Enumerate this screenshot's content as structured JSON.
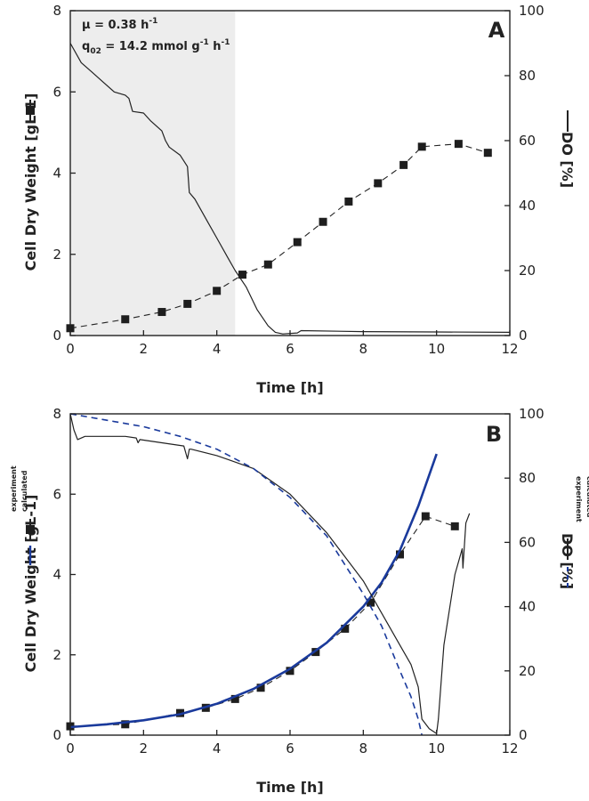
{
  "chart_data": [
    {
      "panel": "A",
      "type": "line",
      "xlabel": "Time [h]",
      "ylabel": "Cell Dry Weight [gL-1]",
      "y2label": "DO [%]",
      "xlim": [
        0,
        12
      ],
      "ylim": [
        0,
        8
      ],
      "y2lim": [
        0,
        100
      ],
      "xticks": [
        "0",
        "2",
        "4",
        "6",
        "8",
        "10",
        "12"
      ],
      "yticks": [
        "0",
        "2",
        "4",
        "6",
        "8"
      ],
      "y2ticks": [
        "0",
        "20",
        "40",
        "60",
        "80",
        "100"
      ],
      "grid": false,
      "shaded_x": [
        0,
        4.5
      ],
      "annotations": [
        "μ = 0.38 h",
        "-1",
        "q",
        "02",
        " = 14.2 mmol g",
        "-1",
        " h",
        "-1"
      ],
      "series": [
        {
          "axis": "left",
          "style": "black-square-dashed",
          "x": [
            0,
            1.5,
            2.5,
            3.2,
            4.0,
            4.7,
            5.4,
            6.2,
            6.9,
            7.6,
            8.4,
            9.1,
            9.6,
            10.6,
            11.4
          ],
          "y": [
            0.18,
            0.4,
            0.58,
            0.78,
            1.1,
            1.5,
            1.75,
            2.3,
            2.8,
            3.3,
            3.75,
            4.2,
            4.65,
            4.72,
            4.5
          ]
        },
        {
          "axis": "right",
          "style": "black-solid",
          "x": [
            0,
            0.3,
            0.6,
            0.9,
            1.2,
            1.5,
            1.6,
            1.7,
            2.0,
            2.2,
            2.5,
            2.6,
            2.7,
            3.0,
            3.2,
            3.25,
            3.4,
            3.7,
            4.0,
            4.3,
            4.5,
            4.8,
            5.1,
            5.4,
            5.6,
            5.8,
            6.2,
            6.3,
            8,
            10,
            12
          ],
          "y": [
            90,
            84,
            81,
            78,
            75,
            74,
            73,
            69,
            68.5,
            66,
            63,
            60,
            58,
            55.5,
            52,
            44,
            42,
            36,
            30,
            24,
            20,
            15,
            8,
            3,
            1,
            0.5,
            0.8,
            1.5,
            1.2,
            1.1,
            1
          ]
        }
      ]
    },
    {
      "panel": "B",
      "type": "line",
      "xlabel": "Time [h]",
      "ylabel": "Cell Dry Weight [gL-1]",
      "y2label": "DO [%]",
      "xlim": [
        0,
        12
      ],
      "ylim": [
        0,
        8
      ],
      "y2lim": [
        0,
        100
      ],
      "xticks": [
        "0",
        "2",
        "4",
        "6",
        "8",
        "10",
        "12"
      ],
      "yticks": [
        "0",
        "2",
        "4",
        "6",
        "8"
      ],
      "y2ticks": [
        "0",
        "20",
        "40",
        "60",
        "80",
        "100"
      ],
      "grid": false,
      "legend": {
        "left": [
          "experiment",
          "calculated"
        ],
        "right": [
          "experiment",
          "calculated"
        ]
      },
      "series": [
        {
          "name": "experiment",
          "axis": "left",
          "style": "black-square-dashed",
          "x": [
            0,
            1.5,
            3.0,
            3.7,
            4.5,
            5.2,
            6.0,
            6.7,
            7.5,
            8.2,
            9.0,
            9.7,
            10.5
          ],
          "y": [
            0.22,
            0.27,
            0.55,
            0.68,
            0.9,
            1.18,
            1.6,
            2.07,
            2.65,
            3.3,
            4.5,
            5.45,
            5.2
          ]
        },
        {
          "name": "calculated",
          "axis": "left",
          "style": "blue-solid",
          "x": [
            0,
            1,
            2,
            3,
            4,
            5,
            6,
            7,
            8,
            8.5,
            9,
            9.5,
            10
          ],
          "y": [
            0.2,
            0.27,
            0.37,
            0.52,
            0.78,
            1.15,
            1.65,
            2.3,
            3.2,
            3.8,
            4.6,
            5.7,
            7.0
          ]
        },
        {
          "name": "experiment",
          "axis": "right",
          "style": "black-solid",
          "x": [
            0,
            0.1,
            0.2,
            0.4,
            1.0,
            1.5,
            1.8,
            1.85,
            1.9,
            2.5,
            3.1,
            3.2,
            3.25,
            3.3,
            4.0,
            5.0,
            6.0,
            7.0,
            8.0,
            8.5,
            9.0,
            9.3,
            9.5,
            9.6,
            9.8,
            10.0,
            10.05,
            10.2,
            10.5,
            10.7,
            10.72,
            10.8,
            10.9
          ],
          "y": [
            100,
            95,
            92,
            93,
            93,
            93,
            92.5,
            91,
            92,
            91,
            90,
            86,
            89,
            89,
            87,
            83,
            75,
            63,
            48,
            38,
            28,
            22,
            15,
            5,
            2,
            0.5,
            5,
            28,
            50,
            58,
            52,
            66,
            69
          ]
        },
        {
          "name": "calculated",
          "axis": "right",
          "style": "blue-dashed",
          "x": [
            0,
            1,
            2,
            3,
            4,
            5,
            6,
            7,
            8,
            8.5,
            9,
            9.3,
            9.5,
            9.6
          ],
          "y": [
            100,
            98,
            96,
            93,
            89,
            83,
            74,
            62,
            44,
            34,
            20,
            12,
            5,
            0
          ]
        }
      ]
    }
  ]
}
